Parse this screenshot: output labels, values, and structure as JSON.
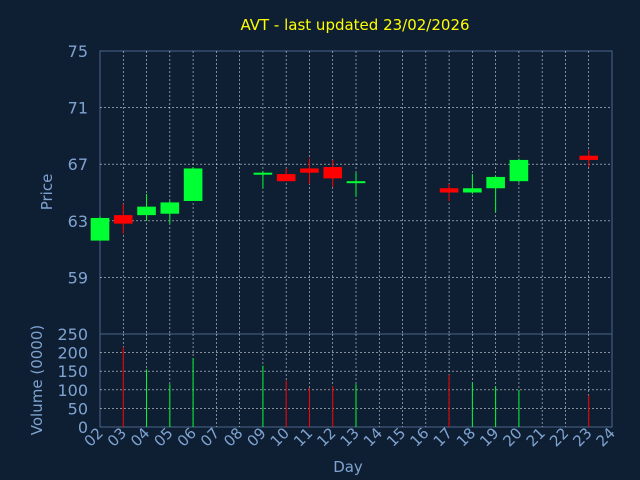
{
  "chart_data": [
    {
      "type": "candlestick",
      "title": "AVT - last updated 23/02/2026",
      "ylabel": "Price",
      "ylim": [
        55,
        75
      ],
      "yticks": [
        75,
        71,
        67,
        63,
        59
      ],
      "grid": true,
      "candles": [
        {
          "day": "02",
          "open": 61.6,
          "high": 63.3,
          "low": 61.6,
          "close": 63.2
        },
        {
          "day": "03",
          "open": 63.4,
          "high": 64.2,
          "low": 62.1,
          "close": 62.8
        },
        {
          "day": "04",
          "open": 63.4,
          "high": 64.9,
          "low": 63.0,
          "close": 64.0
        },
        {
          "day": "05",
          "open": 63.5,
          "high": 64.4,
          "low": 62.8,
          "close": 64.3
        },
        {
          "day": "06",
          "open": 64.4,
          "high": 66.8,
          "low": 64.4,
          "close": 66.7
        },
        {
          "day": "09",
          "open": 66.3,
          "high": 66.5,
          "low": 65.3,
          "close": 66.4
        },
        {
          "day": "10",
          "open": 66.3,
          "high": 66.7,
          "low": 65.8,
          "close": 65.8
        },
        {
          "day": "11",
          "open": 66.7,
          "high": 67.4,
          "low": 65.6,
          "close": 66.4
        },
        {
          "day": "12",
          "open": 66.8,
          "high": 67.3,
          "low": 65.4,
          "close": 66.0
        },
        {
          "day": "13",
          "open": 65.7,
          "high": 66.4,
          "low": 64.7,
          "close": 65.8
        },
        {
          "day": "17",
          "open": 65.3,
          "high": 65.6,
          "low": 64.4,
          "close": 65.0
        },
        {
          "day": "18",
          "open": 65.0,
          "high": 66.3,
          "low": 64.9,
          "close": 65.3
        },
        {
          "day": "19",
          "open": 65.3,
          "high": 66.2,
          "low": 63.6,
          "close": 66.1
        },
        {
          "day": "20",
          "open": 65.8,
          "high": 67.4,
          "low": 65.7,
          "close": 67.3
        },
        {
          "day": "23",
          "open": 67.6,
          "high": 68.0,
          "low": 66.8,
          "close": 67.3
        }
      ]
    },
    {
      "type": "bar",
      "ylabel": "Volume (0000)",
      "xlabel": "Day",
      "ylim": [
        0,
        250
      ],
      "yticks": [
        250,
        200,
        150,
        100,
        50,
        0
      ],
      "categories": [
        "02",
        "03",
        "04",
        "05",
        "06",
        "07",
        "08",
        "09",
        "10",
        "11",
        "12",
        "13",
        "14",
        "15",
        "16",
        "17",
        "18",
        "19",
        "20",
        "21",
        "22",
        "23",
        "24"
      ],
      "volumes": [
        {
          "day": "03",
          "value": 215,
          "direction": "down"
        },
        {
          "day": "04",
          "value": 155,
          "direction": "up"
        },
        {
          "day": "05",
          "value": 115,
          "direction": "up"
        },
        {
          "day": "06",
          "value": 185,
          "direction": "up"
        },
        {
          "day": "09",
          "value": 165,
          "direction": "up"
        },
        {
          "day": "10",
          "value": 125,
          "direction": "down"
        },
        {
          "day": "11",
          "value": 105,
          "direction": "down"
        },
        {
          "day": "12",
          "value": 110,
          "direction": "down"
        },
        {
          "day": "13",
          "value": 115,
          "direction": "up"
        },
        {
          "day": "17",
          "value": 140,
          "direction": "down"
        },
        {
          "day": "18",
          "value": 120,
          "direction": "up"
        },
        {
          "day": "19",
          "value": 110,
          "direction": "up"
        },
        {
          "day": "20",
          "value": 100,
          "direction": "up"
        },
        {
          "day": "23",
          "value": 85,
          "direction": "down"
        }
      ]
    }
  ],
  "colors": {
    "background": "#0f1f33",
    "title": "#ffff00",
    "axis_text": "#7fa3d1",
    "grid": "#ffffff",
    "up": "#00ff33",
    "down": "#ff0000",
    "plot_border": "#4a6688"
  }
}
